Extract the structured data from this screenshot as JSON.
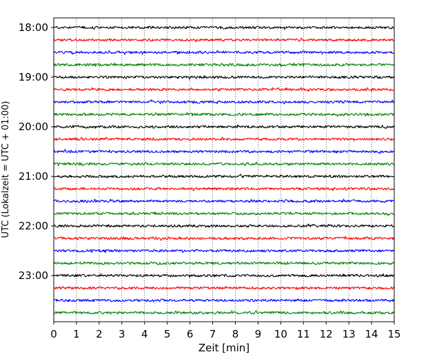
{
  "chart_data": {
    "type": "line",
    "xlabel": "Zeit  [min]",
    "ylabel": "UTC (Lokalzeit = UTC + 01:00)",
    "xlim": [
      0,
      15
    ],
    "x_ticks": [
      "0",
      "1",
      "2",
      "3",
      "4",
      "5",
      "6",
      "7",
      "8",
      "9",
      "10",
      "11",
      "12",
      "13",
      "14",
      "15"
    ],
    "y_ticks": [
      {
        "label": "18:00",
        "minutes": 0
      },
      {
        "label": "19:00",
        "minutes": 60
      },
      {
        "label": "20:00",
        "minutes": 120
      },
      {
        "label": "21:00",
        "minutes": 180
      },
      {
        "label": "22:00",
        "minutes": 240
      },
      {
        "label": "23:00",
        "minutes": 300
      }
    ],
    "trace_interval_minutes": 15,
    "trace_count": 24,
    "first_trace_start": "18:00",
    "last_trace_start": "23:45",
    "x_grid": "dotted, every 1 min",
    "trace_colors": [
      "#000000",
      "#ff0000",
      "#0000ff",
      "#008000"
    ]
  }
}
